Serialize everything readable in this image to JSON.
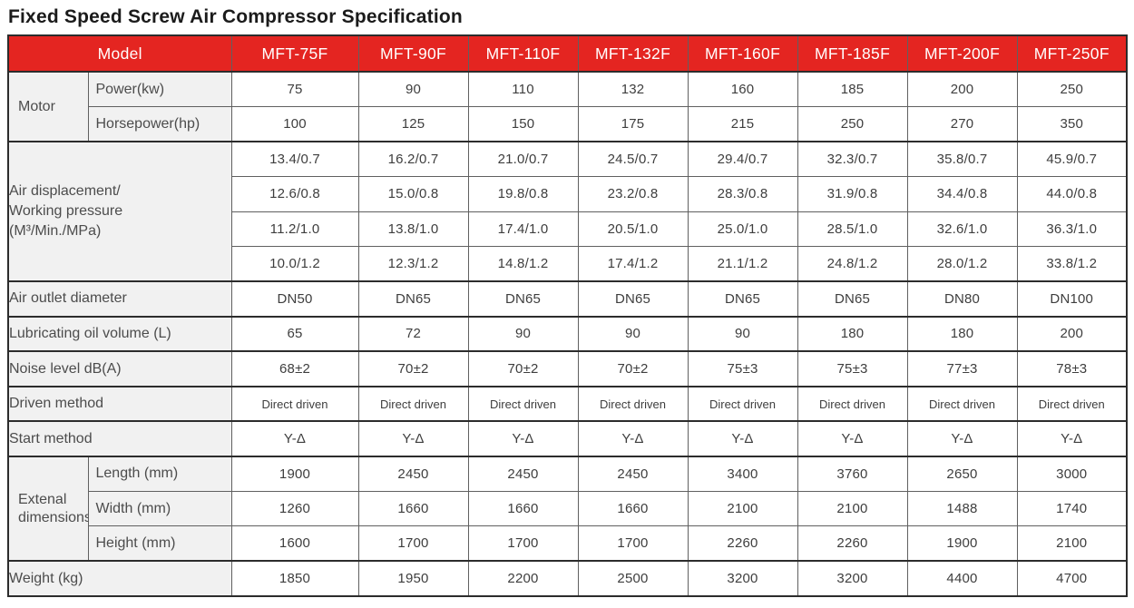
{
  "title": "Fixed Speed Screw Air Compressor Specification",
  "colors": {
    "header_bg": "#e42521",
    "header_text": "#ffffff",
    "label_bg": "#f1f1f1",
    "border_dark": "#2c2c2c",
    "border_light": "#606060",
    "label_text": "#4c4c4c",
    "value_text": "#3e3e3e"
  },
  "table": {
    "header": {
      "model_label": "Model",
      "models": [
        "MFT-75F",
        "MFT-90F",
        "MFT-110F",
        "MFT-132F",
        "MFT-160F",
        "MFT-185F",
        "MFT-200F",
        "MFT-250F"
      ]
    },
    "sections": [
      {
        "type": "group",
        "group_label": "Motor",
        "rows": [
          {
            "sublabel": "Power(kw)",
            "values": [
              "75",
              "90",
              "110",
              "132",
              "160",
              "185",
              "200",
              "250"
            ]
          },
          {
            "sublabel": "Horsepower(hp)",
            "values": [
              "100",
              "125",
              "150",
              "175",
              "215",
              "250",
              "270",
              "350"
            ]
          }
        ]
      },
      {
        "type": "span",
        "label_lines": [
          "Air displacement/",
          "Working pressure",
          "(M³/Min./MPa)"
        ],
        "rows": [
          {
            "values": [
              "13.4/0.7",
              "16.2/0.7",
              "21.0/0.7",
              "24.5/0.7",
              "29.4/0.7",
              "32.3/0.7",
              "35.8/0.7",
              "45.9/0.7"
            ]
          },
          {
            "values": [
              "12.6/0.8",
              "15.0/0.8",
              "19.8/0.8",
              "23.2/0.8",
              "28.3/0.8",
              "31.9/0.8",
              "34.4/0.8",
              "44.0/0.8"
            ]
          },
          {
            "values": [
              "11.2/1.0",
              "13.8/1.0",
              "17.4/1.0",
              "20.5/1.0",
              "25.0/1.0",
              "28.5/1.0",
              "32.6/1.0",
              "36.3/1.0"
            ]
          },
          {
            "values": [
              "10.0/1.2",
              "12.3/1.2",
              "14.8/1.2",
              "17.4/1.2",
              "21.1/1.2",
              "24.8/1.2",
              "28.0/1.2",
              "33.8/1.2"
            ]
          }
        ]
      },
      {
        "type": "single",
        "label": "Air outlet diameter",
        "values": [
          "DN50",
          "DN65",
          "DN65",
          "DN65",
          "DN65",
          "DN65",
          "DN80",
          "DN100"
        ]
      },
      {
        "type": "single",
        "label": "Lubricating oil volume (L)",
        "values": [
          "65",
          "72",
          "90",
          "90",
          "90",
          "180",
          "180",
          "200"
        ]
      },
      {
        "type": "single",
        "label": "Noise level dB(A)",
        "values": [
          "68±2",
          "70±2",
          "70±2",
          "70±2",
          "75±3",
          "75±3",
          "77±3",
          "78±3"
        ]
      },
      {
        "type": "single",
        "label": "Driven method",
        "small": true,
        "values": [
          "Direct driven",
          "Direct driven",
          "Direct driven",
          "Direct driven",
          "Direct driven",
          "Direct driven",
          "Direct driven",
          "Direct driven"
        ]
      },
      {
        "type": "single",
        "label": "Start method",
        "values": [
          "Y-Δ",
          "Y-Δ",
          "Y-Δ",
          "Y-Δ",
          "Y-Δ",
          "Y-Δ",
          "Y-Δ",
          "Y-Δ"
        ]
      },
      {
        "type": "group",
        "group_label": "Extenal dimensions",
        "rows": [
          {
            "sublabel": "Length (mm)",
            "values": [
              "1900",
              "2450",
              "2450",
              "2450",
              "3400",
              "3760",
              "2650",
              "3000"
            ]
          },
          {
            "sublabel": "Width (mm)",
            "values": [
              "1260",
              "1660",
              "1660",
              "1660",
              "2100",
              "2100",
              "1488",
              "1740"
            ]
          },
          {
            "sublabel": "Height (mm)",
            "values": [
              "1600",
              "1700",
              "1700",
              "1700",
              "2260",
              "2260",
              "1900",
              "2100"
            ]
          }
        ]
      },
      {
        "type": "single",
        "label": "Weight (kg)",
        "values": [
          "1850",
          "1950",
          "2200",
          "2500",
          "3200",
          "3200",
          "4400",
          "4700"
        ]
      }
    ]
  }
}
